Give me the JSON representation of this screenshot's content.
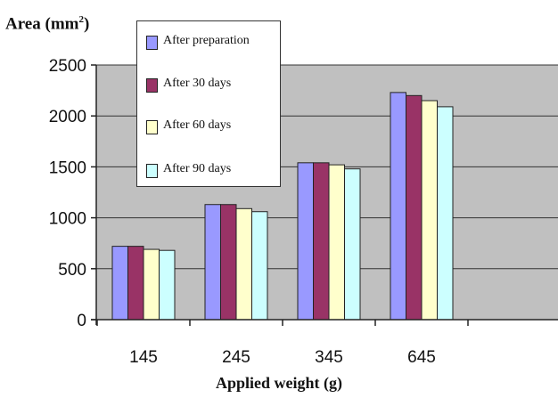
{
  "chart_data": {
    "type": "bar",
    "title": "",
    "xlabel": "Applied weight (g)",
    "ylabel": "Area (mm²)",
    "ylabel_main": "Area (mm",
    "ylabel_sup": "2",
    "ylabel_end": ")",
    "categories": [
      "145",
      "245",
      "345",
      "645"
    ],
    "ylim": [
      0,
      2500
    ],
    "yticks": [
      "0",
      "500",
      "1000",
      "1500",
      "2000",
      "2500"
    ],
    "grid": true,
    "legend_position": "top-left",
    "series": [
      {
        "name": "After preparation",
        "color": "#9999ff",
        "values": [
          720,
          1130,
          1540,
          2230
        ]
      },
      {
        "name": "After 30 days",
        "color": "#993366",
        "values": [
          720,
          1130,
          1540,
          2200
        ]
      },
      {
        "name": "After 60 days",
        "color": "#ffffcc",
        "values": [
          690,
          1090,
          1520,
          2150
        ]
      },
      {
        "name": "After 90 days",
        "color": "#ccffff",
        "values": [
          680,
          1060,
          1480,
          2090
        ]
      }
    ]
  }
}
